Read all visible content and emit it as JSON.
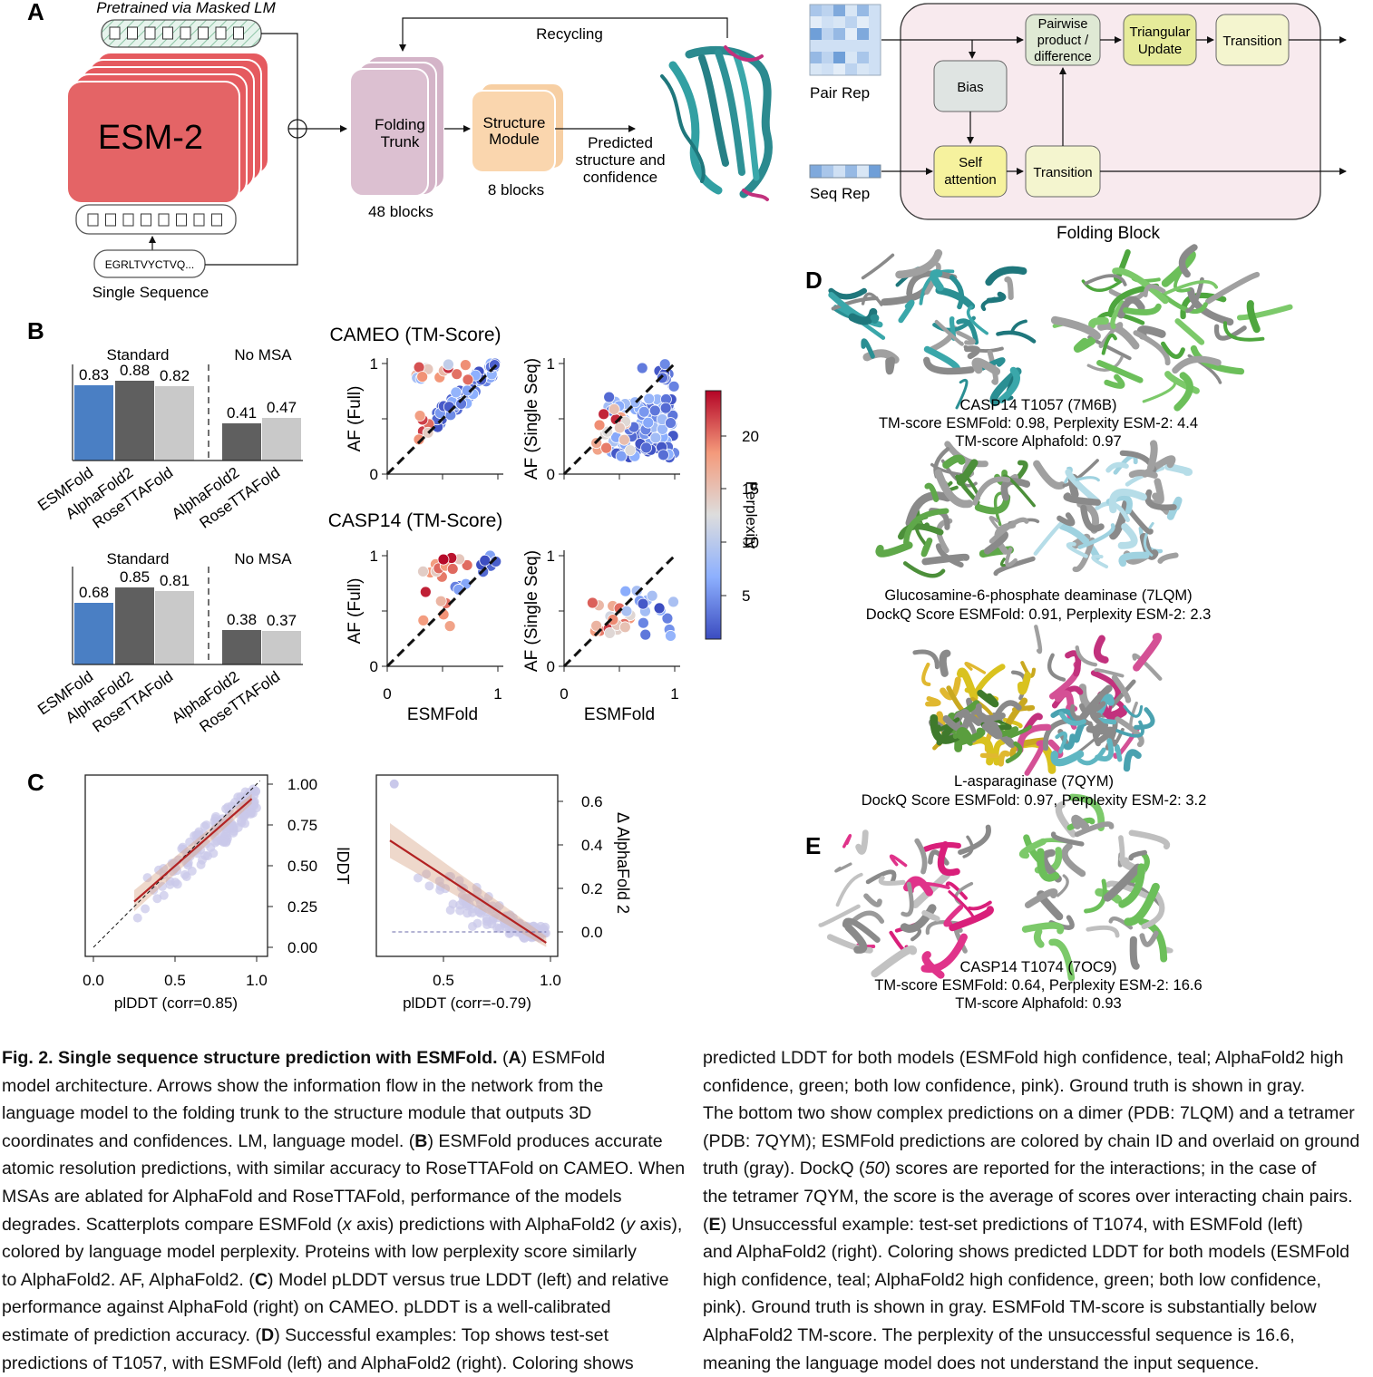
{
  "panels": {
    "a": "A",
    "b": "B",
    "c": "C",
    "d": "D",
    "e": "E"
  },
  "arch": {
    "pretrained": "Pretrained via Masked LM",
    "esm": "ESM-2",
    "seq_example": "EGRLTVYCTVQ...",
    "single_sequence": "Single Sequence",
    "recycling": "Recycling",
    "folding_trunk_1": "Folding",
    "folding_trunk_2": "Trunk",
    "trunk_blocks": "48 blocks",
    "structure_module_1": "Structure",
    "structure_module_2": "Module",
    "sm_blocks": "8 blocks",
    "predicted_1": "Predicted",
    "predicted_2": "structure and",
    "predicted_3": "confidence"
  },
  "block": {
    "pair_rep": "Pair Rep",
    "seq_rep": "Seq Rep",
    "pairwise_1": "Pairwise",
    "pairwise_2": "product /",
    "pairwise_3": "difference",
    "tri_1": "Triangular",
    "tri_2": "Update",
    "transition": "Transition",
    "bias": "Bias",
    "self_1": "Self",
    "self_2": "attention",
    "folding_block": "Folding Block"
  },
  "bars": {
    "standard": "Standard",
    "no_msa": "No MSA",
    "labels": [
      "ESMFold",
      "AlphaFold2",
      "RoseTTAFold",
      "AlphaFold2",
      "RoseTTAFold"
    ],
    "colors": [
      "#4a7fc4",
      "#5f5f5f",
      "#c9c9c9",
      "#5f5f5f",
      "#c9c9c9"
    ],
    "cameo_values": [
      "0.83",
      "0.88",
      "0.82",
      "0.41",
      "0.47"
    ],
    "casp_values": [
      "0.68",
      "0.85",
      "0.81",
      "0.38",
      "0.37"
    ]
  },
  "scatter": {
    "cameo_title": "CAMEO (TM-Score)",
    "casp_title": "CASP14 (TM-Score)",
    "ylabel_full": "AF (Full)",
    "ylabel_single": "AF (Single Seq)",
    "xlabel": "ESMFold",
    "tick_0": "0",
    "tick_1": "1",
    "colorbar_label": "Perplexity",
    "cb_20": "20",
    "cb_15": "15",
    "cb_10": "10",
    "cb_5": "5"
  },
  "calib": {
    "left_xlabel": "plDDT (corr=0.85)",
    "right_xlabel": "plDDT (corr=-0.79)",
    "left_ylabel": "lDDT",
    "right_ylabel": "Δ AlphaFold 2",
    "x00": "0.0",
    "x05": "0.5",
    "x10": "1.0",
    "ly100": "1.00",
    "ly075": "0.75",
    "ly050": "0.50",
    "ly025": "0.25",
    "ly000": "0.00",
    "ry06": "0.6",
    "ry04": "0.4",
    "ry02": "0.2",
    "ry00": "0.0"
  },
  "examples": {
    "d1_l1": "CASP14 T1057 (7M6B)",
    "d1_l2": "TM-score ESMFold: 0.98, Perplexity ESM-2: 4.4",
    "d1_l3": "TM-score Alphafold: 0.97",
    "d2_l1": "Glucosamine-6-phosphate deaminase (7LQM)",
    "d2_l2": "DockQ Score ESMFold: 0.91, Perplexity ESM-2: 2.3",
    "d3_l1": "L-asparaginase (7QYM)",
    "d3_l2": "DockQ Score ESMFold: 0.97, Perplexity ESM-2: 3.2",
    "e_l1": "CASP14 T1074 (7OC9)",
    "e_l2": "TM-score ESMFold: 0.64, Perplexity ESM-2: 16.6",
    "e_l3": "TM-score Alphafold: 0.93"
  },
  "caption": {
    "left": [
      "ESMFold",
      "model architecture. Arrows show the information flow in the network from the",
      "language model to the folding trunk to the structure module that outputs 3D",
      "coordinates and confidences. LM, language model. (",
      ") ESMFold produces accurate",
      "atomic resolution predictions, with similar accuracy to RoseTTAFold on CAMEO. When",
      "MSAs are ablated for AlphaFold and RoseTTAFold, performance of the models",
      "degrades. Scatterplots compare ESMFold (",
      " axis) predictions with AlphaFold2 (",
      " axis),",
      "colored by language model perplexity. Proteins with low perplexity score similarly",
      "to AlphaFold2. AF, AlphaFold2. (",
      ") Model pLDDT versus true LDDT (left) and relative",
      "performance against AlphaFold (right) on CAMEO. pLDDT is a well-calibrated",
      "estimate of prediction accuracy. (",
      ") Successful examples: Top shows test-set",
      "predictions of T1057, with ESMFold (left) and AlphaFold2 (right). Coloring shows"
    ],
    "fig_title": "Fig. 2. Single sequence structure prediction with ESMFold.",
    "x_italic": "x",
    "y_italic": "y",
    "right": [
      "predicted LDDT for both models (ESMFold high confidence, teal; AlphaFold2 high",
      "confidence, green; both low confidence, pink). Ground truth is shown in gray.",
      "The bottom two show complex predictions on a dimer (PDB: 7LQM) and a tetramer",
      "(PDB: 7QYM); ESMFold predictions are colored by chain ID and overlaid on ground",
      "truth (gray). DockQ (",
      ") scores are reported for the interactions; in the case of",
      "the tetramer 7QYM, the score is the average of scores over interacting chain pairs.",
      ") Unsuccessful example: test-set predictions of T1074, with ESMFold (left)",
      "and AlphaFold2 (right). Coloring shows predicted LDDT for both models (ESMFold",
      "high confidence, teal; AlphaFold2 high confidence, green; both low confidence,",
      "pink). Ground truth is shown in gray. ESMFold TM-score is substantially below",
      "AlphaFold2 TM-score. The perplexity of the unsuccessful sequence is 16.6,",
      "meaning the language model does not understand the input sequence."
    ],
    "ref50": "50"
  }
}
